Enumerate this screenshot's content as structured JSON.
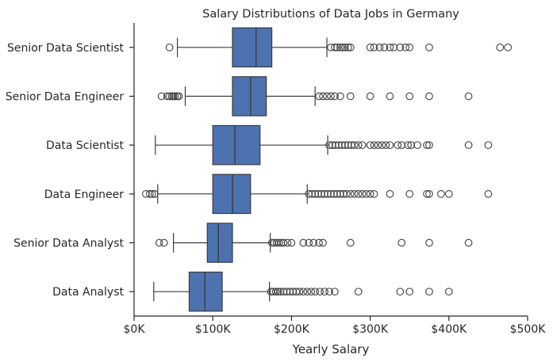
{
  "chart_data": {
    "type": "boxplot",
    "orientation": "horizontal",
    "title": "Salary Distributions of Data Jobs in Germany",
    "xlabel": "Yearly Salary",
    "ylabel": "",
    "xlim": [
      0,
      500000
    ],
    "xticks": [
      {
        "value": 0,
        "label": "$0K"
      },
      {
        "value": 100000,
        "label": "$100K"
      },
      {
        "value": 200000,
        "label": "$200K"
      },
      {
        "value": 300000,
        "label": "$300K"
      },
      {
        "value": 400000,
        "label": "$400K"
      },
      {
        "value": 500000,
        "label": "$500K"
      }
    ],
    "grid": false,
    "colors": {
      "box": "#4c72b0",
      "line": "#3c3c3c",
      "axis": "#262626"
    },
    "categories": [
      "Senior Data Scientist",
      "Senior Data Engineer",
      "Data Scientist",
      "Data Engineer",
      "Senior Data Analyst",
      "Data Analyst"
    ],
    "boxes": [
      {
        "category": "Senior Data Scientist",
        "whisker_low": 55000,
        "q1": 125000,
        "median": 155000,
        "q3": 175000,
        "whisker_high": 245000,
        "outliers": [
          45000,
          250000,
          255000,
          258000,
          262000,
          265000,
          268000,
          272000,
          275000,
          300000,
          305000,
          312000,
          318000,
          325000,
          330000,
          338000,
          345000,
          350000,
          375000,
          465000,
          475000
        ]
      },
      {
        "category": "Senior Data Engineer",
        "whisker_low": 65000,
        "q1": 125000,
        "median": 148000,
        "q3": 168000,
        "whisker_high": 230000,
        "outliers": [
          35000,
          42000,
          45000,
          48000,
          50000,
          52000,
          55000,
          57000,
          235000,
          240000,
          245000,
          250000,
          255000,
          262000,
          275000,
          300000,
          325000,
          350000,
          375000,
          425000
        ]
      },
      {
        "category": "Data Scientist",
        "whisker_low": 27000,
        "q1": 100000,
        "median": 128000,
        "q3": 160000,
        "whisker_high": 246000,
        "outliers": [
          248000,
          252000,
          256000,
          260000,
          264000,
          268000,
          272000,
          276000,
          280000,
          285000,
          290000,
          300000,
          305000,
          310000,
          315000,
          320000,
          325000,
          335000,
          340000,
          348000,
          352000,
          360000,
          372000,
          375000,
          425000,
          450000
        ]
      },
      {
        "category": "Data Engineer",
        "whisker_low": 30000,
        "q1": 100000,
        "median": 125000,
        "q3": 148000,
        "whisker_high": 220000,
        "outliers": [
          15000,
          20000,
          23000,
          26000,
          222000,
          226000,
          230000,
          234000,
          238000,
          242000,
          246000,
          250000,
          254000,
          258000,
          262000,
          266000,
          270000,
          275000,
          280000,
          285000,
          290000,
          295000,
          300000,
          305000,
          325000,
          350000,
          372000,
          375000,
          390000,
          400000,
          450000
        ]
      },
      {
        "category": "Senior Data Analyst",
        "whisker_low": 50000,
        "q1": 93000,
        "median": 107000,
        "q3": 125000,
        "whisker_high": 173000,
        "outliers": [
          32000,
          38000,
          175000,
          178000,
          181000,
          184000,
          187000,
          190000,
          195000,
          200000,
          215000,
          222000,
          228000,
          235000,
          240000,
          275000,
          340000,
          375000,
          425000
        ]
      },
      {
        "category": "Data Analyst",
        "whisker_low": 25000,
        "q1": 70000,
        "median": 90000,
        "q3": 112000,
        "whisker_high": 172000,
        "outliers": [
          174000,
          177000,
          180000,
          183000,
          186000,
          190000,
          194000,
          198000,
          202000,
          206000,
          210000,
          215000,
          220000,
          225000,
          230000,
          236000,
          242000,
          248000,
          255000,
          285000,
          338000,
          350000,
          375000,
          400000
        ]
      }
    ]
  }
}
